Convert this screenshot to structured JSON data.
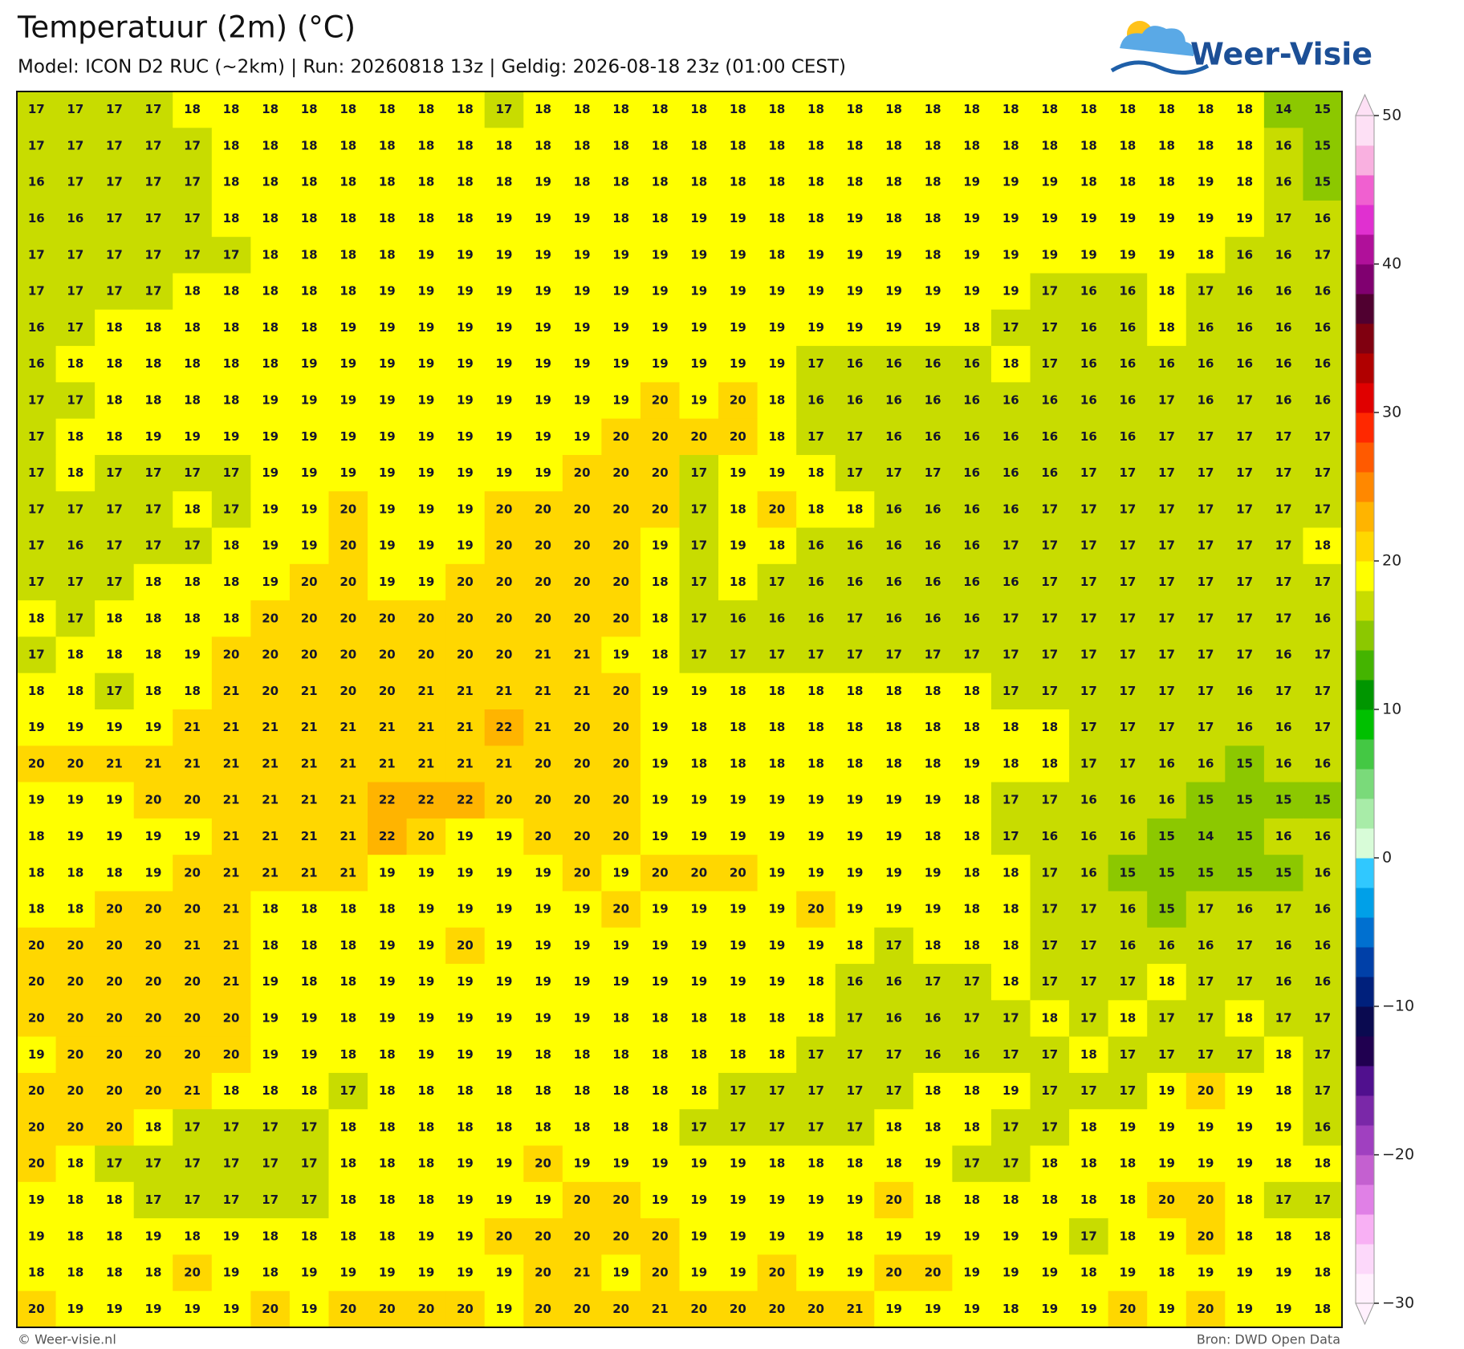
{
  "header": {
    "title": "Temperatuur (2m) (°C)",
    "subtitle": "Model: ICON D2 RUC (~2km)  |  Run: 20260818 13z  |  Geldig: 2026-08-18 23z (01:00 CEST)"
  },
  "logo": "Weer-Visie",
  "grid": {
    "rows": [
      [
        17,
        17,
        17,
        17,
        18,
        18,
        18,
        18,
        18,
        18,
        18,
        18,
        17,
        18,
        18,
        18,
        18,
        18,
        18,
        18,
        18,
        18,
        18,
        18,
        18,
        18,
        18,
        18,
        18,
        18,
        18,
        18,
        14,
        15
      ],
      [
        17,
        17,
        17,
        17,
        17,
        18,
        18,
        18,
        18,
        18,
        18,
        18,
        18,
        18,
        18,
        18,
        18,
        18,
        18,
        18,
        18,
        18,
        18,
        18,
        18,
        18,
        18,
        18,
        18,
        18,
        18,
        18,
        16,
        15
      ],
      [
        16,
        17,
        17,
        17,
        17,
        18,
        18,
        18,
        18,
        18,
        18,
        18,
        18,
        19,
        18,
        18,
        18,
        18,
        18,
        18,
        18,
        18,
        18,
        18,
        19,
        19,
        19,
        18,
        18,
        18,
        19,
        18,
        16,
        15
      ],
      [
        16,
        16,
        17,
        17,
        17,
        18,
        18,
        18,
        18,
        18,
        18,
        18,
        19,
        19,
        19,
        18,
        18,
        19,
        19,
        18,
        18,
        19,
        18,
        18,
        19,
        19,
        19,
        19,
        19,
        19,
        19,
        19,
        17,
        16
      ],
      [
        17,
        17,
        17,
        17,
        17,
        17,
        18,
        18,
        18,
        18,
        19,
        19,
        19,
        19,
        19,
        19,
        19,
        19,
        19,
        18,
        19,
        19,
        19,
        18,
        19,
        19,
        19,
        19,
        19,
        19,
        18,
        16,
        16,
        17
      ],
      [
        17,
        17,
        17,
        17,
        18,
        18,
        18,
        18,
        18,
        19,
        19,
        19,
        19,
        19,
        19,
        19,
        19,
        19,
        19,
        19,
        19,
        19,
        19,
        19,
        19,
        19,
        17,
        16,
        16,
        18,
        17,
        16,
        16,
        16
      ],
      [
        16,
        17,
        18,
        18,
        18,
        18,
        18,
        18,
        19,
        19,
        19,
        19,
        19,
        19,
        19,
        19,
        19,
        19,
        19,
        19,
        19,
        19,
        19,
        19,
        18,
        17,
        17,
        16,
        16,
        18,
        16,
        16,
        16,
        16
      ],
      [
        16,
        18,
        18,
        18,
        18,
        18,
        18,
        19,
        19,
        19,
        19,
        19,
        19,
        19,
        19,
        19,
        19,
        19,
        19,
        19,
        17,
        16,
        16,
        16,
        16,
        18,
        17,
        16,
        16,
        16,
        16,
        16,
        16,
        16
      ],
      [
        17,
        17,
        18,
        18,
        18,
        18,
        19,
        19,
        19,
        19,
        19,
        19,
        19,
        19,
        19,
        19,
        20,
        19,
        20,
        18,
        16,
        16,
        16,
        16,
        16,
        16,
        16,
        16,
        16,
        17,
        16,
        17,
        16,
        16
      ],
      [
        17,
        18,
        18,
        19,
        19,
        19,
        19,
        19,
        19,
        19,
        19,
        19,
        19,
        19,
        19,
        20,
        20,
        20,
        20,
        18,
        17,
        17,
        16,
        16,
        16,
        16,
        16,
        16,
        16,
        17,
        17,
        17,
        17,
        17
      ],
      [
        17,
        18,
        17,
        17,
        17,
        17,
        19,
        19,
        19,
        19,
        19,
        19,
        19,
        19,
        20,
        20,
        20,
        17,
        19,
        19,
        18,
        17,
        17,
        17,
        16,
        16,
        16,
        17,
        17,
        17,
        17,
        17,
        17,
        17
      ],
      [
        17,
        17,
        17,
        17,
        18,
        17,
        19,
        19,
        20,
        19,
        19,
        19,
        20,
        20,
        20,
        20,
        20,
        17,
        18,
        20,
        18,
        18,
        16,
        16,
        16,
        16,
        17,
        17,
        17,
        17,
        17,
        17,
        17,
        17
      ],
      [
        17,
        16,
        17,
        17,
        17,
        18,
        19,
        19,
        20,
        19,
        19,
        19,
        20,
        20,
        20,
        20,
        19,
        17,
        19,
        18,
        16,
        16,
        16,
        16,
        16,
        17,
        17,
        17,
        17,
        17,
        17,
        17,
        17,
        18
      ],
      [
        17,
        17,
        17,
        18,
        18,
        18,
        19,
        20,
        20,
        19,
        19,
        20,
        20,
        20,
        20,
        20,
        18,
        17,
        18,
        17,
        16,
        16,
        16,
        16,
        16,
        16,
        17,
        17,
        17,
        17,
        17,
        17,
        17,
        17
      ],
      [
        18,
        17,
        18,
        18,
        18,
        18,
        20,
        20,
        20,
        20,
        20,
        20,
        20,
        20,
        20,
        20,
        18,
        17,
        16,
        16,
        16,
        17,
        16,
        16,
        16,
        17,
        17,
        17,
        17,
        17,
        17,
        17,
        17,
        16
      ],
      [
        17,
        18,
        18,
        18,
        19,
        20,
        20,
        20,
        20,
        20,
        20,
        20,
        20,
        21,
        21,
        19,
        18,
        17,
        17,
        17,
        17,
        17,
        17,
        17,
        17,
        17,
        17,
        17,
        17,
        17,
        17,
        17,
        16,
        17
      ],
      [
        18,
        18,
        17,
        18,
        18,
        21,
        20,
        21,
        20,
        20,
        21,
        21,
        21,
        21,
        21,
        20,
        19,
        19,
        18,
        18,
        18,
        18,
        18,
        18,
        18,
        17,
        17,
        17,
        17,
        17,
        17,
        16,
        17,
        17
      ],
      [
        19,
        19,
        19,
        19,
        21,
        21,
        21,
        21,
        21,
        21,
        21,
        21,
        22,
        21,
        20,
        20,
        19,
        18,
        18,
        18,
        18,
        18,
        18,
        18,
        18,
        18,
        18,
        17,
        17,
        17,
        17,
        16,
        16,
        17
      ],
      [
        20,
        20,
        21,
        21,
        21,
        21,
        21,
        21,
        21,
        21,
        21,
        21,
        21,
        20,
        20,
        20,
        19,
        18,
        18,
        18,
        18,
        18,
        18,
        18,
        19,
        18,
        18,
        17,
        17,
        16,
        16,
        15,
        16,
        16
      ],
      [
        19,
        19,
        19,
        20,
        20,
        21,
        21,
        21,
        21,
        22,
        22,
        22,
        20,
        20,
        20,
        20,
        19,
        19,
        19,
        19,
        19,
        19,
        19,
        19,
        18,
        17,
        17,
        16,
        16,
        16,
        15,
        15,
        15,
        15
      ],
      [
        18,
        19,
        19,
        19,
        19,
        21,
        21,
        21,
        21,
        22,
        20,
        19,
        19,
        20,
        20,
        20,
        19,
        19,
        19,
        19,
        19,
        19,
        19,
        18,
        18,
        17,
        16,
        16,
        16,
        15,
        14,
        15,
        16,
        16
      ],
      [
        18,
        18,
        18,
        19,
        20,
        21,
        21,
        21,
        21,
        19,
        19,
        19,
        19,
        19,
        20,
        19,
        20,
        20,
        20,
        19,
        19,
        19,
        19,
        19,
        18,
        18,
        17,
        16,
        15,
        15,
        15,
        15,
        15,
        16
      ],
      [
        18,
        18,
        20,
        20,
        20,
        21,
        18,
        18,
        18,
        18,
        19,
        19,
        19,
        19,
        19,
        20,
        19,
        19,
        19,
        19,
        20,
        19,
        19,
        19,
        18,
        18,
        17,
        17,
        16,
        15,
        17,
        16,
        17,
        16
      ],
      [
        20,
        20,
        20,
        20,
        21,
        21,
        18,
        18,
        18,
        19,
        19,
        20,
        19,
        19,
        19,
        19,
        19,
        19,
        19,
        19,
        19,
        18,
        17,
        18,
        18,
        18,
        17,
        17,
        16,
        16,
        16,
        17,
        16,
        16
      ],
      [
        20,
        20,
        20,
        20,
        20,
        21,
        19,
        18,
        18,
        19,
        19,
        19,
        19,
        19,
        19,
        19,
        19,
        19,
        19,
        19,
        18,
        16,
        16,
        17,
        17,
        18,
        17,
        17,
        17,
        18,
        17,
        17,
        16,
        16
      ],
      [
        20,
        20,
        20,
        20,
        20,
        20,
        19,
        19,
        18,
        19,
        19,
        19,
        19,
        19,
        19,
        18,
        18,
        18,
        18,
        18,
        18,
        17,
        16,
        16,
        17,
        17,
        18,
        17,
        18,
        17,
        17,
        18,
        17,
        17
      ],
      [
        19,
        20,
        20,
        20,
        20,
        20,
        19,
        19,
        18,
        18,
        19,
        19,
        19,
        18,
        18,
        18,
        18,
        18,
        18,
        18,
        17,
        17,
        17,
        16,
        16,
        17,
        17,
        18,
        17,
        17,
        17,
        17,
        18,
        17
      ],
      [
        20,
        20,
        20,
        20,
        21,
        18,
        18,
        18,
        17,
        18,
        18,
        18,
        18,
        18,
        18,
        18,
        18,
        18,
        17,
        17,
        17,
        17,
        17,
        18,
        18,
        19,
        17,
        17,
        17,
        19,
        20,
        19,
        18,
        17
      ],
      [
        20,
        20,
        20,
        18,
        17,
        17,
        17,
        17,
        18,
        18,
        18,
        18,
        18,
        18,
        18,
        18,
        18,
        17,
        17,
        17,
        17,
        17,
        18,
        18,
        18,
        17,
        17,
        18,
        19,
        19,
        19,
        19,
        19,
        16
      ],
      [
        20,
        18,
        17,
        17,
        17,
        17,
        17,
        17,
        18,
        18,
        18,
        19,
        19,
        20,
        19,
        19,
        19,
        19,
        19,
        18,
        18,
        18,
        18,
        19,
        17,
        17,
        18,
        18,
        18,
        19,
        19,
        19,
        18,
        18
      ],
      [
        19,
        18,
        18,
        17,
        17,
        17,
        17,
        17,
        18,
        18,
        18,
        19,
        19,
        19,
        20,
        20,
        19,
        19,
        19,
        19,
        19,
        19,
        20,
        18,
        18,
        18,
        18,
        18,
        18,
        20,
        20,
        18,
        17,
        17
      ],
      [
        19,
        18,
        18,
        19,
        18,
        19,
        18,
        18,
        18,
        18,
        19,
        19,
        20,
        20,
        20,
        20,
        20,
        19,
        19,
        19,
        19,
        18,
        19,
        19,
        19,
        19,
        19,
        17,
        18,
        19,
        20,
        18,
        18,
        18
      ],
      [
        18,
        18,
        18,
        18,
        20,
        19,
        18,
        19,
        19,
        19,
        19,
        19,
        19,
        20,
        21,
        19,
        20,
        19,
        19,
        20,
        19,
        19,
        20,
        20,
        19,
        19,
        19,
        18,
        19,
        18,
        19,
        19,
        19,
        18
      ],
      [
        20,
        19,
        19,
        19,
        19,
        19,
        20,
        19,
        20,
        20,
        20,
        20,
        19,
        20,
        20,
        20,
        21,
        20,
        20,
        20,
        20,
        21,
        19,
        19,
        19,
        18,
        19,
        19,
        20,
        19,
        20,
        19,
        19,
        18
      ]
    ]
  },
  "colorbar": {
    "lim": [
      -30,
      50
    ],
    "ticks": [
      {
        "value": -30,
        "label": "−30"
      },
      {
        "value": -20,
        "label": "−20"
      },
      {
        "value": -10,
        "label": "−10"
      },
      0,
      10,
      20,
      30,
      40,
      50
    ],
    "colors": [
      "#fff0fd",
      "#fcd8fa",
      "#f8b0f4",
      "#e080e6",
      "#c460d0",
      "#a040c0",
      "#7a28a8",
      "#50108e",
      "#200050",
      "#0a0a50",
      "#00207c",
      "#0040a8",
      "#0070d0",
      "#00a0e8",
      "#30c8ff",
      "#d8fcd8",
      "#a8eca8",
      "#7ada7a",
      "#44c844",
      "#00c000",
      "#009600",
      "#44b400",
      "#8cc800",
      "#c8dc00",
      "#ffff00",
      "#ffd700",
      "#ffb400",
      "#ff8800",
      "#ff5a00",
      "#ff2800",
      "#e00000",
      "#b00000",
      "#800010",
      "#500030",
      "#800070",
      "#b0109a",
      "#e030d0",
      "#f060d0",
      "#f9b0e0",
      "#fde0f5"
    ]
  },
  "footer": {
    "left": "© Weer-visie.nl",
    "right": "Bron: DWD Open Data"
  }
}
